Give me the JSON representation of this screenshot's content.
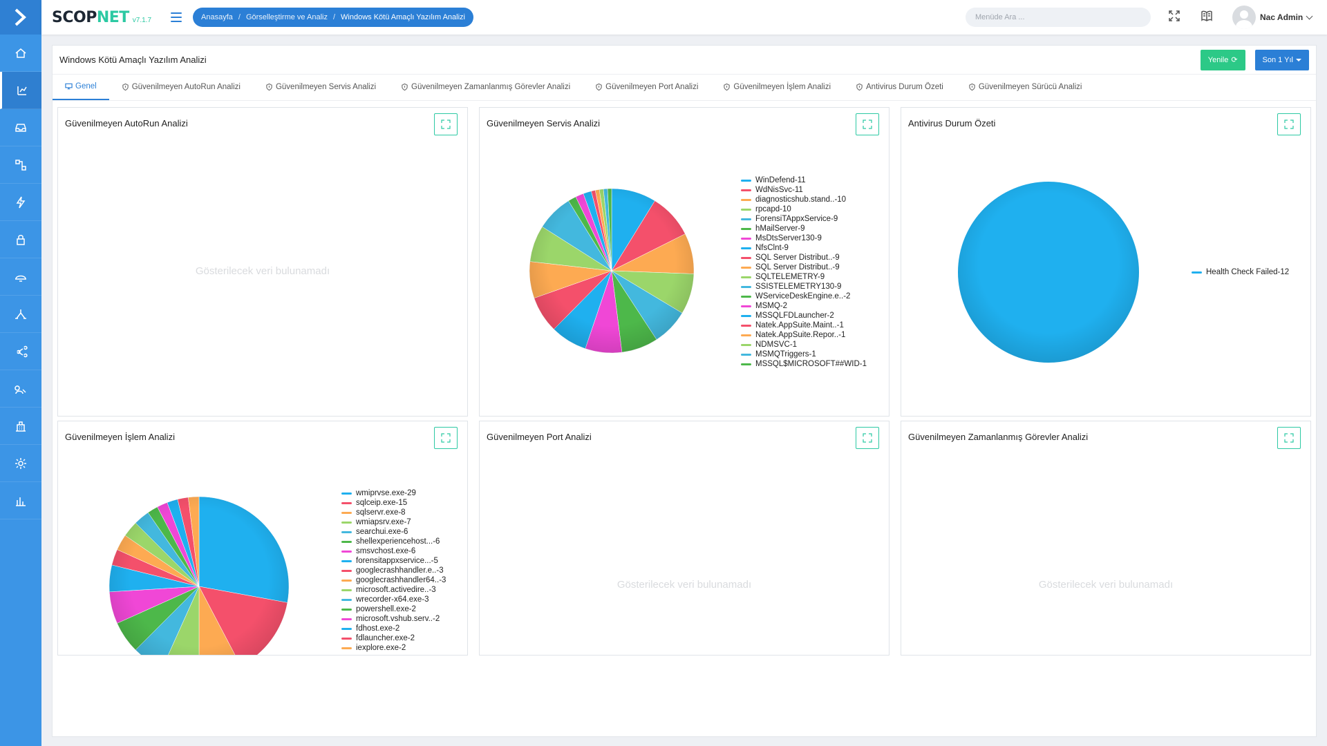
{
  "brand": {
    "name_a": "SCOP",
    "name_b": "NET",
    "version": "v7.1.7"
  },
  "breadcrumb": [
    "Anasayfa",
    "Görselleştirme ve Analiz",
    "Windows Kötü Amaçlı Yazılım Analizi"
  ],
  "search": {
    "placeholder": "Menüde Ara ..."
  },
  "user": {
    "name": "Nac Admin"
  },
  "sidebar": {
    "items": [
      {
        "icon": "home-icon",
        "active": false
      },
      {
        "icon": "analysis-icon",
        "active": true
      },
      {
        "icon": "inbox-icon",
        "active": false
      },
      {
        "icon": "workflow-icon",
        "active": false
      },
      {
        "icon": "lightning-icon",
        "active": false
      },
      {
        "icon": "lock-icon",
        "active": false
      },
      {
        "icon": "hat-icon",
        "active": false
      },
      {
        "icon": "network-icon",
        "active": false
      },
      {
        "icon": "share-icon",
        "active": false
      },
      {
        "icon": "user-search-icon",
        "active": false
      },
      {
        "icon": "building-icon",
        "active": false
      },
      {
        "icon": "gear-icon",
        "active": false
      },
      {
        "icon": "bar-chart-icon",
        "active": false
      }
    ]
  },
  "page": {
    "title": "Windows Kötü Amaçlı Yazılım Analizi",
    "refresh_label": "Yenile",
    "period_label": "Son 1 Yıl"
  },
  "tabs": [
    {
      "label": "Genel",
      "active": true
    },
    {
      "label": "Güvenilmeyen AutoRun Analizi",
      "active": false
    },
    {
      "label": "Güvenilmeyen Servis Analizi",
      "active": false
    },
    {
      "label": "Güvenilmeyen Zamanlanmış Görevler Analizi",
      "active": false
    },
    {
      "label": "Güvenilmeyen Port Analizi",
      "active": false
    },
    {
      "label": "Güvenilmeyen İşlem Analizi",
      "active": false
    },
    {
      "label": "Antivirus Durum Özeti",
      "active": false
    },
    {
      "label": "Güvenilmeyen Sürücü Analizi",
      "active": false
    }
  ],
  "empty_message": "Gösterilecek veri bulunamadı",
  "panels": {
    "autorun": {
      "title": "Güvenilmeyen AutoRun Analizi"
    },
    "service": {
      "title": "Güvenilmeyen Servis Analizi"
    },
    "antivirus": {
      "title": "Antivirus Durum Özeti"
    },
    "process": {
      "title": "Güvenilmeyen İşlem Analizi"
    },
    "port": {
      "title": "Güvenilmeyen Port Analizi"
    },
    "scheduled": {
      "title": "Güvenilmeyen Zamanlanmış Görevler Analizi"
    }
  },
  "colors": {
    "palette": [
      "#1fb0ef",
      "#f4506b",
      "#fdaa52",
      "#9bd66a",
      "#43b8de",
      "#4db84a",
      "#f047d6"
    ],
    "accent": "#2b7fd6",
    "green": "#2cc987",
    "sidebar": "#3c95e6"
  },
  "chart_data": [
    {
      "type": "pie",
      "title": "Güvenilmeyen Servis Analizi",
      "categories": [
        "WinDefend",
        "WdNisSvc",
        "diagnosticshub.stand..",
        "rpcapd",
        "ForensiTAppxService",
        "hMailServer",
        "MsDtsServer130",
        "NfsClnt",
        "SQL Server Distribut..",
        "SQL Server Distribut..",
        "SQLTELEMETRY",
        "SSISTELEMETRY130",
        "WServiceDeskEngine.e..",
        "MSMQ",
        "MSSQLFDLauncher",
        "Natek.AppSuite.Maint..",
        "Natek.AppSuite.Repor..",
        "NDMSVC",
        "MSMQTriggers",
        "MSSQL$MICROSOFT##WID"
      ],
      "values": [
        11,
        11,
        10,
        10,
        9,
        9,
        9,
        9,
        9,
        9,
        9,
        9,
        2,
        2,
        2,
        1,
        1,
        1,
        1,
        1
      ],
      "legend_labels": [
        "WinDefend-11",
        "WdNisSvc-11",
        "diagnosticshub.stand..-10",
        "rpcapd-10",
        "ForensiTAppxService-9",
        "hMailServer-9",
        "MsDtsServer130-9",
        "NfsClnt-9",
        "SQL Server Distribut..-9",
        "SQL Server Distribut..-9",
        "SQLTELEMETRY-9",
        "SSISTELEMETRY130-9",
        "WServiceDeskEngine.e..-2",
        "MSMQ-2",
        "MSSQLFDLauncher-2",
        "Natek.AppSuite.Maint..-1",
        "Natek.AppSuite.Repor..-1",
        "NDMSVC-1",
        "MSMQTriggers-1",
        "MSSQL$MICROSOFT##WID-1"
      ],
      "legend": "right"
    },
    {
      "type": "pie",
      "title": "Antivirus Durum Özeti",
      "categories": [
        "Health Check Failed"
      ],
      "values": [
        12
      ],
      "legend_labels": [
        "Health Check Failed-12"
      ],
      "legend": "right"
    },
    {
      "type": "pie",
      "title": "Güvenilmeyen İşlem Analizi",
      "categories": [
        "wmiprvse.exe",
        "sqlceip.exe",
        "sqlservr.exe",
        "wmiapsrv.exe",
        "searchui.exe",
        "shellexperiencehost..",
        "smsvchost.exe",
        "forensitappxservice..",
        "googlecrashhandler.e..",
        "googlecrashhandler64..",
        "microsoft.activedire..",
        "wrecorder-x64.exe",
        "powershell.exe",
        "microsoft.vshub.serv..",
        "fdhost.exe",
        "fdlauncher.exe",
        "iexplore.exe"
      ],
      "values": [
        29,
        15,
        8,
        7,
        6,
        6,
        6,
        5,
        3,
        3,
        3,
        3,
        2,
        2,
        2,
        2,
        2
      ],
      "legend_labels": [
        "wmiprvse.exe-29",
        "sqlceip.exe-15",
        "sqlservr.exe-8",
        "wmiapsrv.exe-7",
        "searchui.exe-6",
        "shellexperiencehost...-6",
        "smsvchost.exe-6",
        "forensitappxservice...-5",
        "googlecrashhandler.e..-3",
        "googlecrashhandler64..-3",
        "microsoft.activedire..-3",
        "wrecorder-x64.exe-3",
        "powershell.exe-2",
        "microsoft.vshub.serv..-2",
        "fdhost.exe-2",
        "fdlauncher.exe-2",
        "iexplore.exe-2"
      ],
      "legend": "right"
    }
  ]
}
